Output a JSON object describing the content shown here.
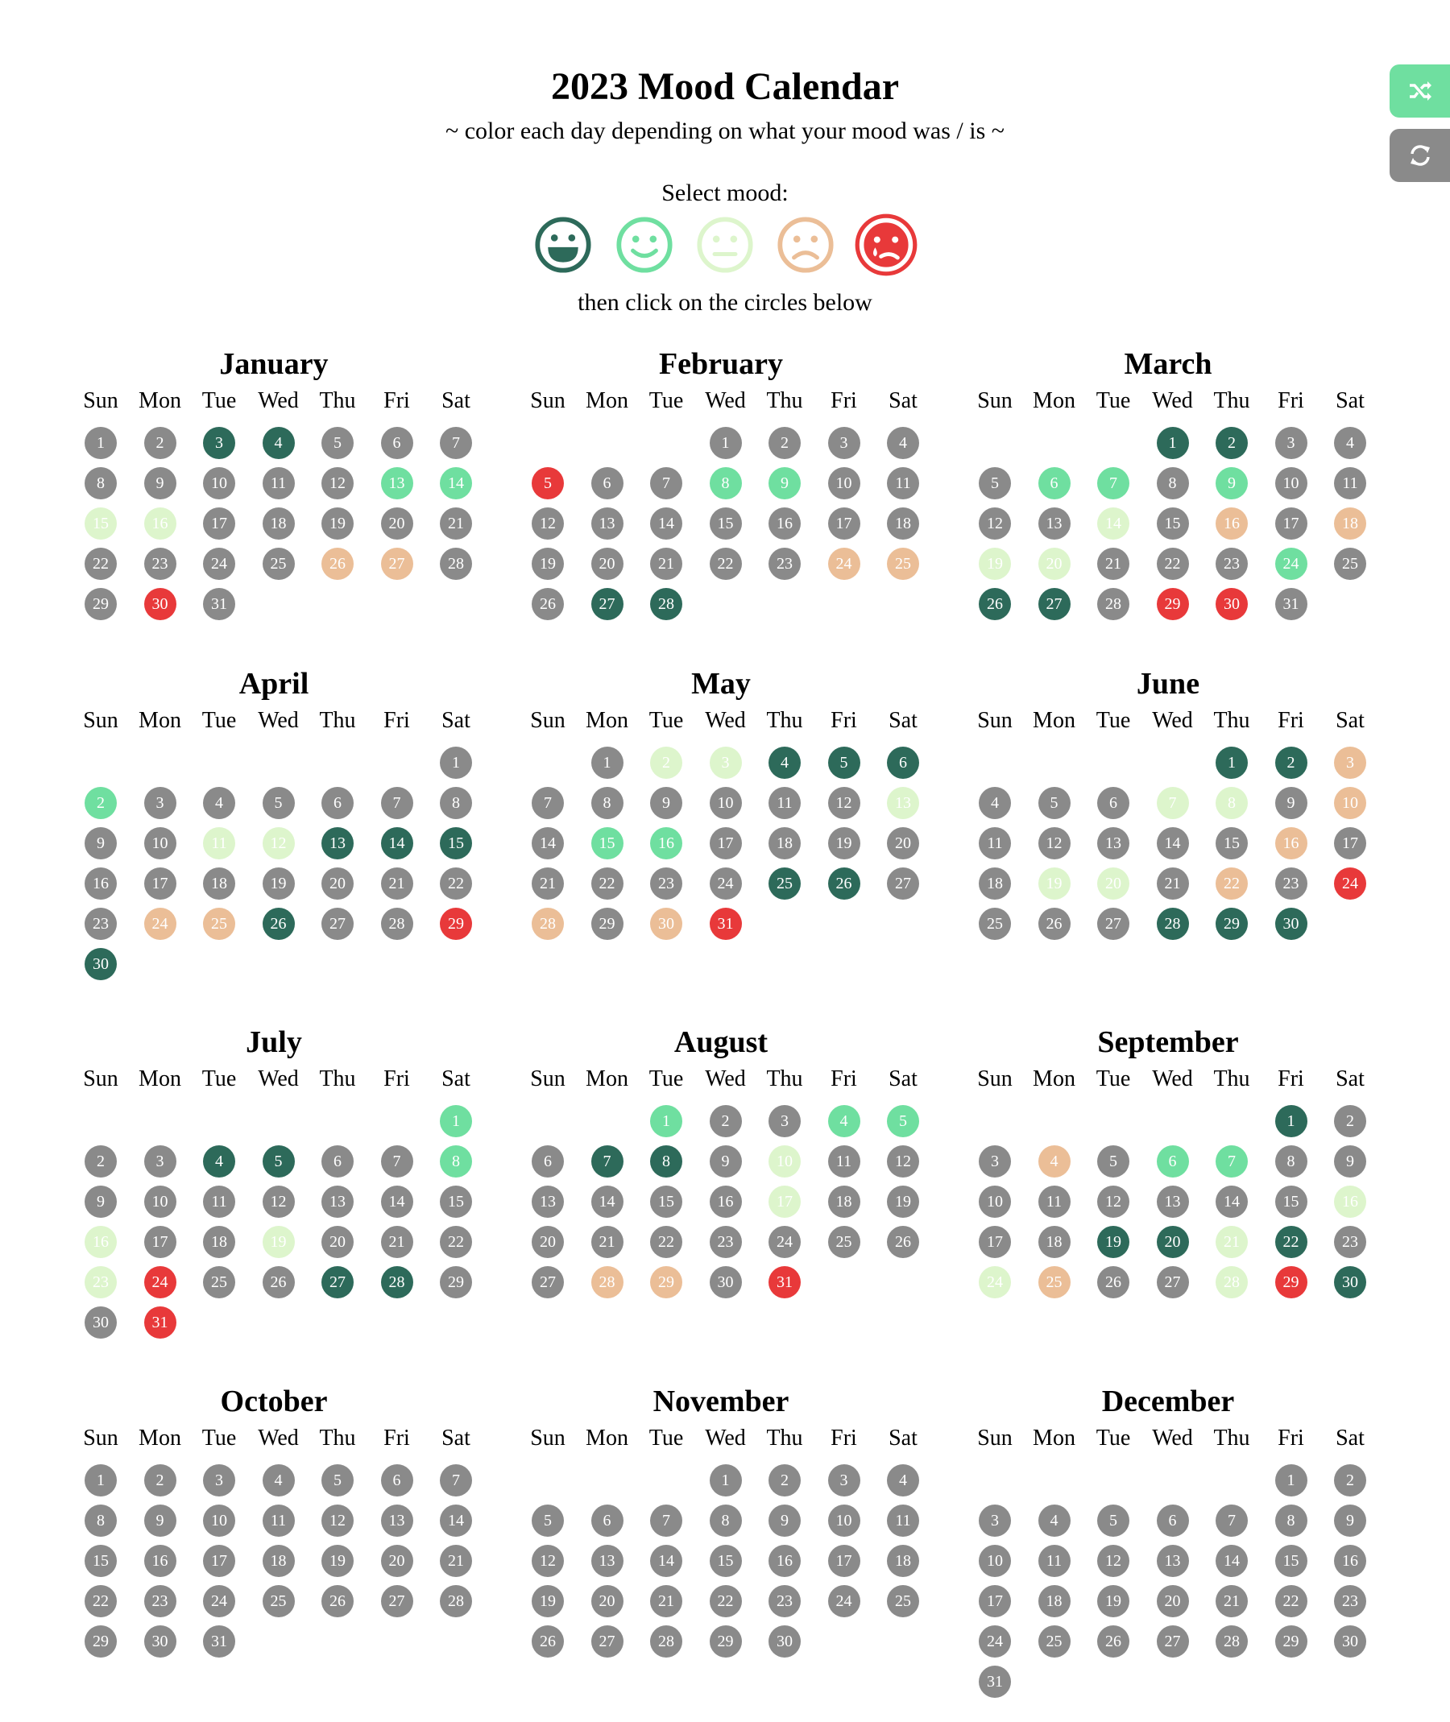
{
  "header": {
    "title": "2023 Mood Calendar",
    "subtitle": "~ color each day depending on what your mood was / is ~",
    "select_label": "Select mood:",
    "then_label": "then click on the circles below"
  },
  "colors": {
    "0": "#8a8a8a",
    "1": "#2d6a5a",
    "2": "#6fdfa0",
    "3": "#ddf5cc",
    "4": "#ebbe97",
    "5": "#e8393a"
  },
  "moods": [
    {
      "name": "very-happy",
      "icon": "grin-icon",
      "color": "#2d6a5a",
      "selected": false
    },
    {
      "name": "happy",
      "icon": "smile-icon",
      "color": "#6fdfa0",
      "selected": false
    },
    {
      "name": "neutral",
      "icon": "meh-icon",
      "color": "#ddf5cc",
      "selected": false
    },
    {
      "name": "sad",
      "icon": "frown-icon",
      "color": "#ebbe97",
      "selected": false
    },
    {
      "name": "very-sad",
      "icon": "sad-tear-icon",
      "color": "#e8393a",
      "selected": true
    }
  ],
  "side_buttons": [
    {
      "name": "shuffle-button",
      "icon": "shuffle-icon",
      "color": "#6fdfa0"
    },
    {
      "name": "refresh-button",
      "icon": "refresh-icon",
      "color": "#8a8a8a"
    }
  ],
  "weekdays": [
    "Sun",
    "Mon",
    "Tue",
    "Wed",
    "Thu",
    "Fri",
    "Sat"
  ],
  "months": [
    {
      "name": "January",
      "first_weekday": 0,
      "days": 31,
      "moods": [
        0,
        0,
        1,
        1,
        0,
        0,
        0,
        0,
        0,
        0,
        0,
        0,
        2,
        2,
        3,
        3,
        0,
        0,
        0,
        0,
        0,
        0,
        0,
        0,
        0,
        4,
        4,
        0,
        0,
        5,
        0
      ]
    },
    {
      "name": "February",
      "first_weekday": 3,
      "days": 28,
      "moods": [
        0,
        0,
        0,
        0,
        5,
        0,
        0,
        2,
        2,
        0,
        0,
        0,
        0,
        0,
        0,
        0,
        0,
        0,
        0,
        0,
        0,
        0,
        0,
        4,
        4,
        0,
        1,
        1
      ]
    },
    {
      "name": "March",
      "first_weekday": 3,
      "days": 31,
      "moods": [
        1,
        1,
        0,
        0,
        0,
        2,
        2,
        0,
        2,
        0,
        0,
        0,
        0,
        3,
        0,
        4,
        0,
        4,
        3,
        3,
        0,
        0,
        0,
        2,
        0,
        1,
        1,
        0,
        5,
        5,
        0
      ]
    },
    {
      "name": "April",
      "first_weekday": 6,
      "days": 30,
      "moods": [
        0,
        2,
        0,
        0,
        0,
        0,
        0,
        0,
        0,
        0,
        3,
        3,
        1,
        1,
        1,
        0,
        0,
        0,
        0,
        0,
        0,
        0,
        0,
        4,
        4,
        1,
        0,
        0,
        5,
        1
      ]
    },
    {
      "name": "May",
      "first_weekday": 1,
      "days": 31,
      "moods": [
        0,
        3,
        3,
        1,
        1,
        1,
        0,
        0,
        0,
        0,
        0,
        0,
        3,
        0,
        2,
        2,
        0,
        0,
        0,
        0,
        0,
        0,
        0,
        0,
        1,
        1,
        0,
        4,
        0,
        4,
        5
      ]
    },
    {
      "name": "June",
      "first_weekday": 4,
      "days": 30,
      "moods": [
        1,
        1,
        4,
        0,
        0,
        0,
        3,
        3,
        0,
        4,
        0,
        0,
        0,
        0,
        0,
        4,
        0,
        0,
        3,
        3,
        0,
        4,
        0,
        5,
        0,
        0,
        0,
        1,
        1,
        1
      ]
    },
    {
      "name": "July",
      "first_weekday": 6,
      "days": 31,
      "moods": [
        2,
        0,
        0,
        1,
        1,
        0,
        0,
        2,
        0,
        0,
        0,
        0,
        0,
        0,
        0,
        3,
        0,
        0,
        3,
        0,
        0,
        0,
        3,
        5,
        0,
        0,
        1,
        1,
        0,
        0,
        5
      ]
    },
    {
      "name": "August",
      "first_weekday": 2,
      "days": 31,
      "moods": [
        2,
        0,
        0,
        2,
        2,
        0,
        1,
        1,
        0,
        3,
        0,
        0,
        0,
        0,
        0,
        0,
        3,
        0,
        0,
        0,
        0,
        0,
        0,
        0,
        0,
        0,
        0,
        4,
        4,
        0,
        5
      ]
    },
    {
      "name": "September",
      "first_weekday": 5,
      "days": 30,
      "moods": [
        1,
        0,
        0,
        4,
        0,
        2,
        2,
        0,
        0,
        0,
        0,
        0,
        0,
        0,
        0,
        3,
        0,
        0,
        1,
        1,
        3,
        1,
        0,
        3,
        4,
        0,
        0,
        3,
        5,
        1
      ]
    },
    {
      "name": "October",
      "first_weekday": 0,
      "days": 31,
      "moods": []
    },
    {
      "name": "November",
      "first_weekday": 3,
      "days": 30,
      "moods": []
    },
    {
      "name": "December",
      "first_weekday": 5,
      "days": 31,
      "moods": []
    }
  ]
}
